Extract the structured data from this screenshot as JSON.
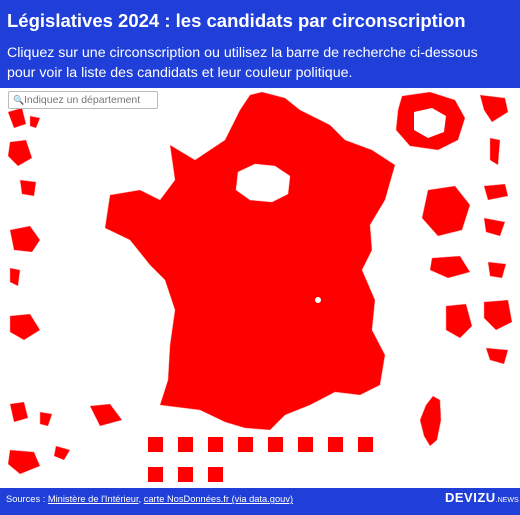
{
  "header": {
    "title": "Législatives 2024 : les candidats par circonscription",
    "subtitle": "Cliquez sur une circonscription ou utilisez la barre de recherche ci-dessous pour voir la liste des candidats et leur couleur politique."
  },
  "search": {
    "placeholder": "Indiquez un département"
  },
  "footer": {
    "sources_label": "Sources :",
    "links": [
      "Ministère de l'Intérieur",
      "carte NosDonnées.fr (via data.gouv)"
    ],
    "separator": ",",
    "logo": "DEVIZU",
    "logo_suffix": ".NEWS"
  }
}
